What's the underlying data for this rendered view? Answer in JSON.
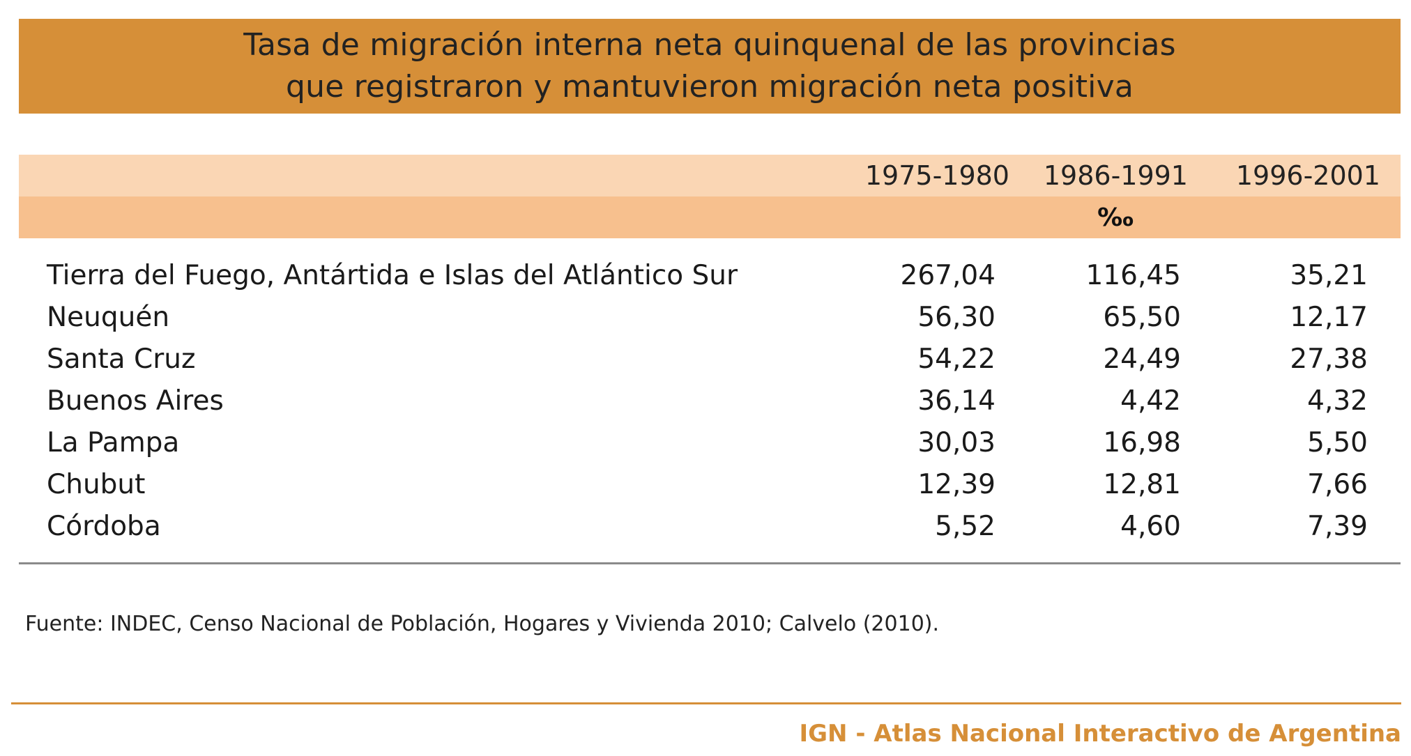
{
  "title": {
    "line1": "Tasa de migración interna neta quinquenal de las provincias",
    "line2": "que registraron y mantuvieron migración neta positiva"
  },
  "unit": "‰",
  "columns": [
    "1975-1980",
    "1986-1991",
    "1996-2001"
  ],
  "rows": [
    {
      "label": "Tierra del Fuego, Antártida e Islas del Atlántico Sur",
      "values": [
        "267,04",
        "116,45",
        "35,21"
      ]
    },
    {
      "label": "Neuquén",
      "values": [
        "56,30",
        "65,50",
        "12,17"
      ]
    },
    {
      "label": "Santa Cruz",
      "values": [
        "54,22",
        "24,49",
        "27,38"
      ]
    },
    {
      "label": "Buenos Aires",
      "values": [
        "36,14",
        "4,42",
        "4,32"
      ]
    },
    {
      "label": "La Pampa",
      "values": [
        "30,03",
        "16,98",
        "5,50"
      ]
    },
    {
      "label": "Chubut",
      "values": [
        "12,39",
        "12,81",
        "7,66"
      ]
    },
    {
      "label": "Córdoba",
      "values": [
        "5,52",
        "4,60",
        "7,39"
      ]
    }
  ],
  "source": "Fuente: INDEC, Censo Nacional de Población, Hogares y Vivienda 2010; Calvelo (2010).",
  "footer": "IGN - Atlas Nacional Interactivo de Argentina",
  "colors": {
    "title_band": "#D68F38",
    "header_light": "#FAD6B4",
    "header_dark": "#F7C08E",
    "footer_text": "#D68F38"
  },
  "chart_data": {
    "type": "table",
    "title": "Tasa de migración interna neta quinquenal de las provincias que registraron y mantuvieron migración neta positiva",
    "unit": "‰",
    "columns": [
      "1975-1980",
      "1986-1991",
      "1996-2001"
    ],
    "categories": [
      "Tierra del Fuego, Antártida e Islas del Atlántico Sur",
      "Neuquén",
      "Santa Cruz",
      "Buenos Aires",
      "La Pampa",
      "Chubut",
      "Córdoba"
    ],
    "series": [
      {
        "name": "1975-1980",
        "values": [
          267.04,
          56.3,
          54.22,
          36.14,
          30.03,
          12.39,
          5.52
        ]
      },
      {
        "name": "1986-1991",
        "values": [
          116.45,
          65.5,
          24.49,
          4.42,
          16.98,
          12.81,
          4.6
        ]
      },
      {
        "name": "1996-2001",
        "values": [
          35.21,
          12.17,
          27.38,
          4.32,
          5.5,
          7.66,
          7.39
        ]
      }
    ]
  }
}
